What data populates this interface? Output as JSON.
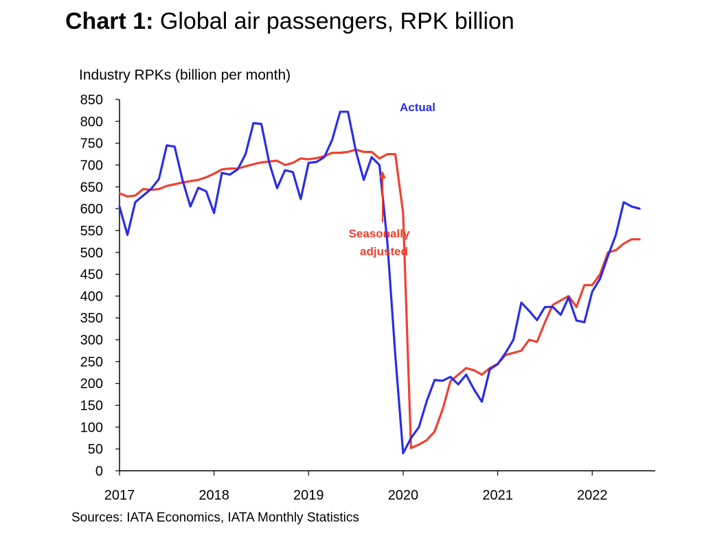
{
  "header": {
    "title_bold": "Chart 1:",
    "title_rest": " Global air passengers, RPK billion"
  },
  "footer": {
    "source": "Sources: IATA Economics, IATA Monthly Statistics"
  },
  "colors": {
    "actual": "#2a2ee6",
    "seasonally_adjusted": "#ef4130",
    "axis": "#000000"
  },
  "chart_data": {
    "type": "line",
    "title": "Chart 1: Global air passengers, RPK billion",
    "ylabel": "Industry RPKs (billion per month)",
    "xlabel": "",
    "ylim": [
      0,
      850
    ],
    "yticks": [
      0,
      50,
      100,
      150,
      200,
      250,
      300,
      350,
      400,
      450,
      500,
      550,
      600,
      650,
      700,
      750,
      800,
      850
    ],
    "x_tick_labels": [
      "2017",
      "2018",
      "2019",
      "2020",
      "2021",
      "2022"
    ],
    "x_axis_end": "2022-09",
    "grid": false,
    "x_unit": "month index from Jan 2017",
    "series": [
      {
        "name": "Actual",
        "color_key": "actual",
        "x": [
          0,
          1,
          2,
          3,
          4,
          5,
          6,
          7,
          8,
          9,
          10,
          11,
          12,
          13,
          14,
          15,
          16,
          17,
          18,
          19,
          20,
          21,
          22,
          23,
          24,
          25,
          26,
          27,
          28,
          29,
          30,
          31,
          32,
          33,
          34,
          35,
          36,
          37,
          38,
          39,
          40,
          41,
          42,
          43,
          44,
          45,
          46,
          47,
          48,
          49,
          50,
          51,
          52,
          53,
          54,
          55,
          56,
          57,
          58,
          59,
          60,
          61,
          62,
          63,
          64,
          65,
          66
        ],
        "values": [
          605,
          540,
          615,
          630,
          645,
          668,
          745,
          742,
          665,
          605,
          648,
          640,
          590,
          682,
          678,
          690,
          725,
          796,
          794,
          706,
          647,
          688,
          684,
          622,
          705,
          707,
          718,
          758,
          822,
          822,
          732,
          666,
          718,
          700,
          522,
          265,
          40,
          75,
          100,
          160,
          208,
          206,
          215,
          198,
          220,
          186,
          158,
          232,
          244,
          270,
          300,
          385,
          366,
          345,
          375,
          375,
          357,
          397,
          344,
          340,
          410,
          440,
          492,
          540,
          615,
          605,
          600
        ],
        "plot_until_index": 66
      },
      {
        "name": "Seasonally adjusted",
        "color_key": "seasonally_adjusted",
        "x": [
          0,
          1,
          2,
          3,
          4,
          5,
          6,
          7,
          8,
          9,
          10,
          11,
          12,
          13,
          14,
          15,
          16,
          17,
          18,
          19,
          20,
          21,
          22,
          23,
          24,
          25,
          26,
          27,
          28,
          29,
          30,
          31,
          32,
          33,
          34,
          35,
          36,
          37,
          38,
          39,
          40,
          41,
          42,
          43,
          44,
          45,
          46,
          47,
          48,
          49,
          50,
          51,
          52,
          53,
          54,
          55,
          56,
          57,
          58,
          59,
          60,
          61,
          62,
          63,
          64,
          65,
          66
        ],
        "values": [
          635,
          628,
          630,
          645,
          643,
          645,
          652,
          656,
          660,
          663,
          666,
          672,
          680,
          690,
          692,
          692,
          697,
          702,
          706,
          708,
          710,
          700,
          705,
          715,
          713,
          716,
          720,
          728,
          728,
          730,
          735,
          730,
          730,
          715,
          725,
          725,
          590,
          52,
          60,
          70,
          90,
          140,
          205,
          220,
          235,
          230,
          220,
          235,
          245,
          265,
          270,
          275,
          300,
          295,
          340,
          380,
          390,
          400,
          375,
          425,
          425,
          450,
          500,
          505,
          520,
          530,
          530
        ],
        "plot_until_index": 66
      }
    ],
    "annotations": [
      {
        "text": "Actual",
        "color_key": "actual"
      },
      {
        "text": "Seasonally\nadjusted",
        "lines": [
          "Seasonally",
          "adjusted"
        ],
        "color_key": "seasonally_adjusted",
        "arrow_to_x_index": 33
      }
    ]
  }
}
